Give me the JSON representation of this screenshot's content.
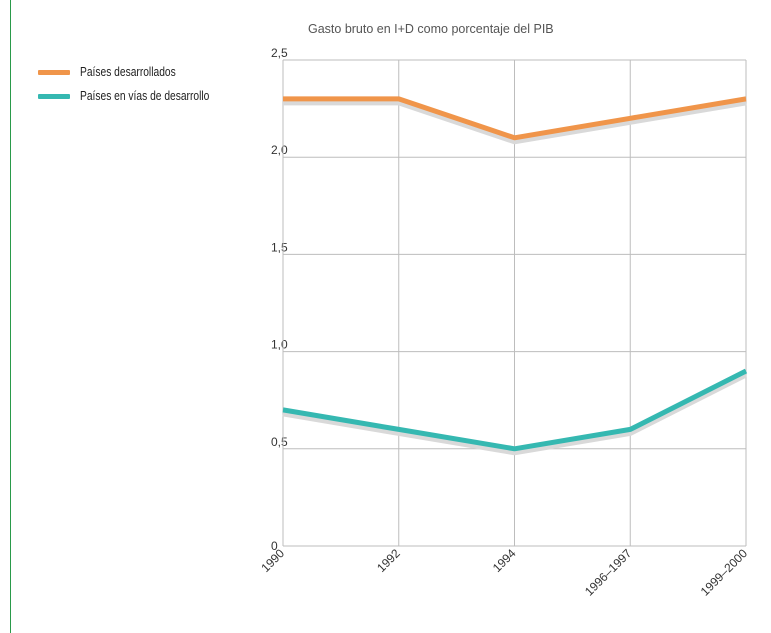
{
  "chart_data": {
    "type": "line",
    "subtitle": "Gasto bruto en I+D como porcentaje del PIB",
    "categories": [
      "1990",
      "1992",
      "1994",
      "1996–1997",
      "1999–2000"
    ],
    "ylim": [
      0,
      2.5
    ],
    "yticks": [
      "0",
      "0,5",
      "1,0",
      "1,5",
      "2,0",
      "2,5"
    ],
    "grid": true,
    "legend_position": "top-left",
    "series": [
      {
        "name": "Países desarrollados",
        "color": "#f0954a",
        "values": [
          2.3,
          2.3,
          2.1,
          2.2,
          2.3
        ]
      },
      {
        "name": "Países en vías de desarrollo",
        "color": "#35b8b1",
        "values": [
          0.7,
          0.6,
          0.5,
          0.6,
          0.9
        ]
      }
    ]
  }
}
